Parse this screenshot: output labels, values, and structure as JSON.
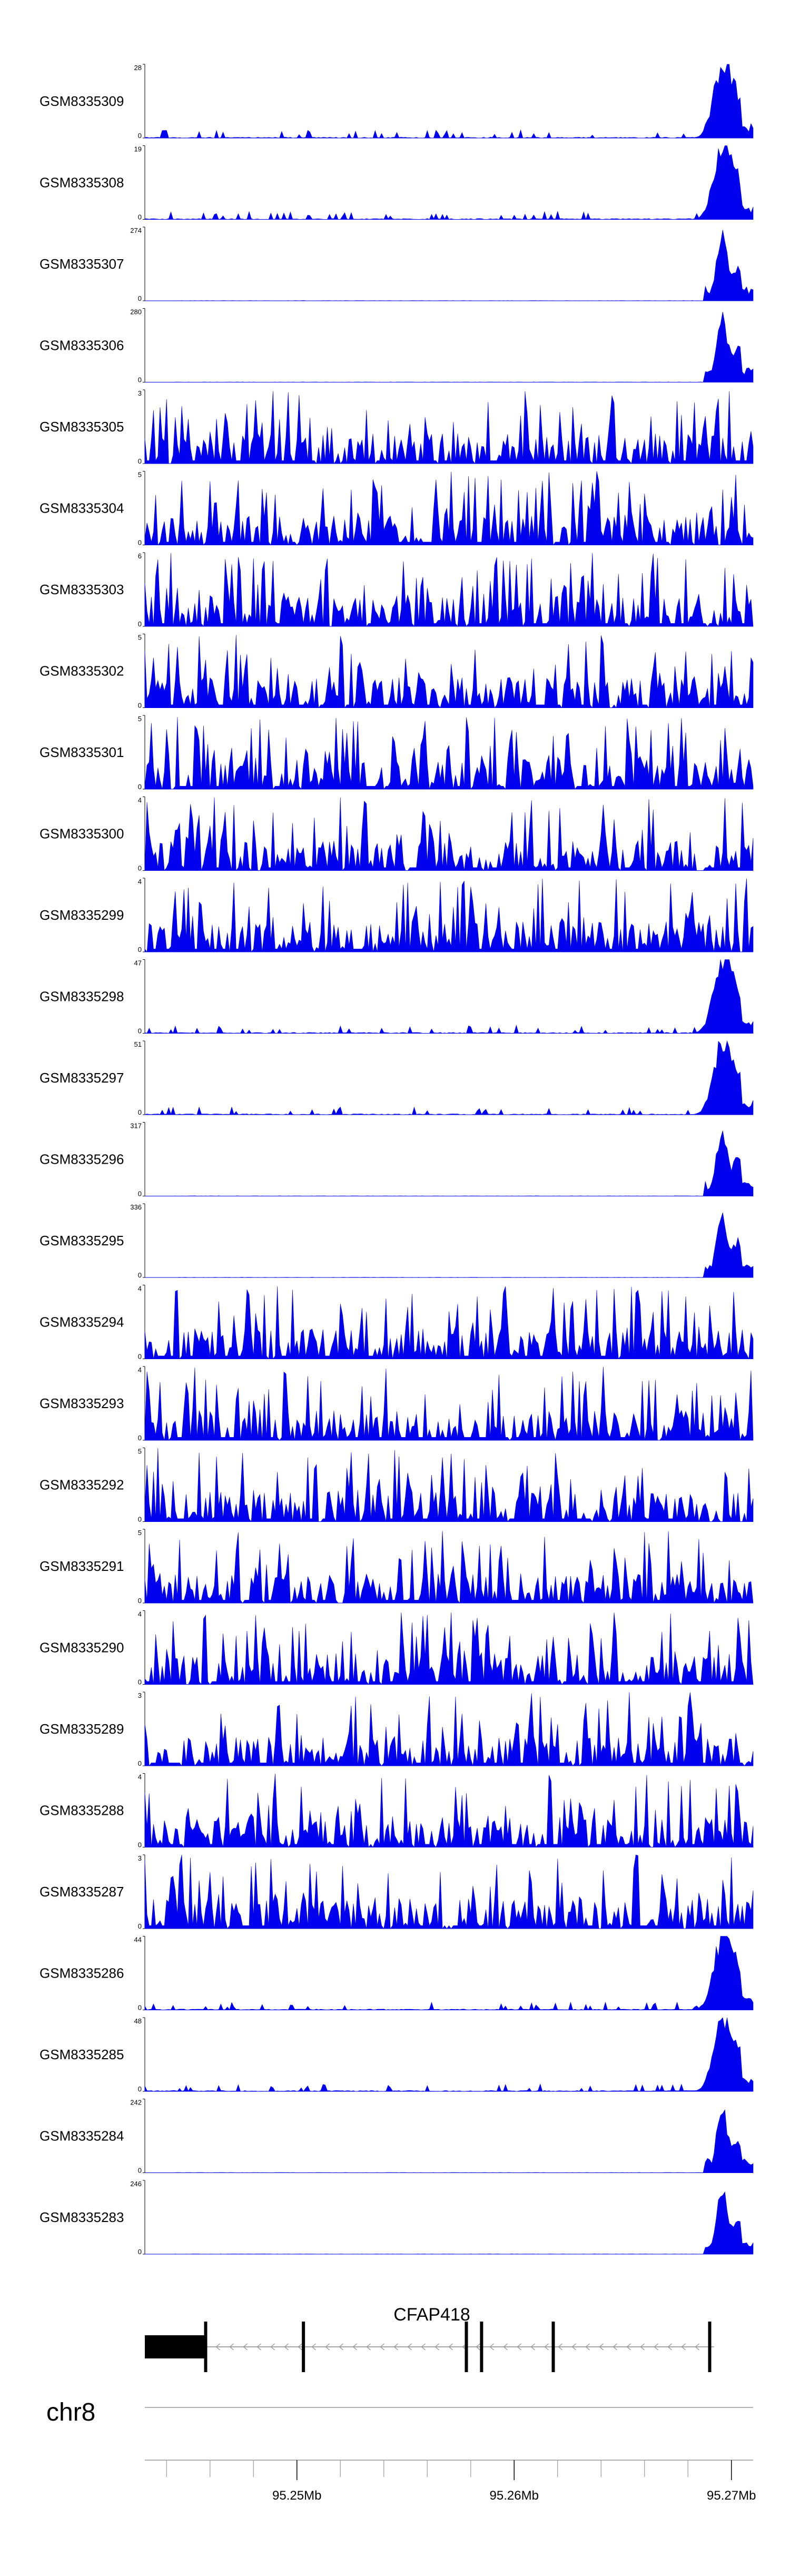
{
  "chart_data": {
    "type": "area",
    "chromosome": "chr8",
    "xlim": [
      95243000,
      95271000
    ],
    "ticks": [
      {
        "value": 95250000,
        "label": "95.25Mb"
      },
      {
        "value": 95260000,
        "label": "95.26Mb"
      },
      {
        "value": 95270000,
        "label": "95.27Mb"
      }
    ],
    "gene": {
      "name": "CFAP418",
      "strand": "-",
      "start": 95243000,
      "end": 95269200,
      "utr_block": [
        95243000,
        95245800
      ],
      "exons": [
        95245800,
        95250300,
        95257800,
        95258500,
        95261800,
        95269000
      ]
    },
    "tracks": [
      {
        "name": "GSM8335309",
        "ymax": "28",
        "ymin": "0",
        "pattern": "tail"
      },
      {
        "name": "GSM8335308",
        "ymax": "19",
        "ymin": "0",
        "pattern": "tail"
      },
      {
        "name": "GSM8335307",
        "ymax": "274",
        "ymin": "0",
        "pattern": "peak"
      },
      {
        "name": "GSM8335306",
        "ymax": "280",
        "ymin": "0",
        "pattern": "peak"
      },
      {
        "name": "GSM8335305",
        "ymax": "3",
        "ymin": "0",
        "pattern": "noise"
      },
      {
        "name": "GSM8335304",
        "ymax": "5",
        "ymin": "0",
        "pattern": "noise"
      },
      {
        "name": "GSM8335303",
        "ymax": "6",
        "ymin": "0",
        "pattern": "noise"
      },
      {
        "name": "GSM8335302",
        "ymax": "5",
        "ymin": "0",
        "pattern": "noise"
      },
      {
        "name": "GSM8335301",
        "ymax": "5",
        "ymin": "0",
        "pattern": "noise"
      },
      {
        "name": "GSM8335300",
        "ymax": "4",
        "ymin": "0",
        "pattern": "noise"
      },
      {
        "name": "GSM8335299",
        "ymax": "4",
        "ymin": "0",
        "pattern": "noise"
      },
      {
        "name": "GSM8335298",
        "ymax": "47",
        "ymin": "0",
        "pattern": "tail"
      },
      {
        "name": "GSM8335297",
        "ymax": "51",
        "ymin": "0",
        "pattern": "tail"
      },
      {
        "name": "GSM8335296",
        "ymax": "317",
        "ymin": "0",
        "pattern": "peak"
      },
      {
        "name": "GSM8335295",
        "ymax": "336",
        "ymin": "0",
        "pattern": "peak"
      },
      {
        "name": "GSM8335294",
        "ymax": "4",
        "ymin": "0",
        "pattern": "noise"
      },
      {
        "name": "GSM8335293",
        "ymax": "4",
        "ymin": "0",
        "pattern": "noise"
      },
      {
        "name": "GSM8335292",
        "ymax": "5",
        "ymin": "0",
        "pattern": "noise"
      },
      {
        "name": "GSM8335291",
        "ymax": "5",
        "ymin": "0",
        "pattern": "noise"
      },
      {
        "name": "GSM8335290",
        "ymax": "4",
        "ymin": "0",
        "pattern": "noise"
      },
      {
        "name": "GSM8335289",
        "ymax": "3",
        "ymin": "0",
        "pattern": "noise"
      },
      {
        "name": "GSM8335288",
        "ymax": "4",
        "ymin": "0",
        "pattern": "noise"
      },
      {
        "name": "GSM8335287",
        "ymax": "3",
        "ymin": "0",
        "pattern": "noise"
      },
      {
        "name": "GSM8335286",
        "ymax": "44",
        "ymin": "0",
        "pattern": "tail"
      },
      {
        "name": "GSM8335285",
        "ymax": "48",
        "ymin": "0",
        "pattern": "tail"
      },
      {
        "name": "GSM8335284",
        "ymax": "242",
        "ymin": "0",
        "pattern": "peak"
      },
      {
        "name": "GSM8335283",
        "ymax": "246",
        "ymin": "0",
        "pattern": "peak"
      }
    ],
    "fill_color": "#0000ee",
    "axis_color": "#000000",
    "guide_color": "#999999"
  }
}
